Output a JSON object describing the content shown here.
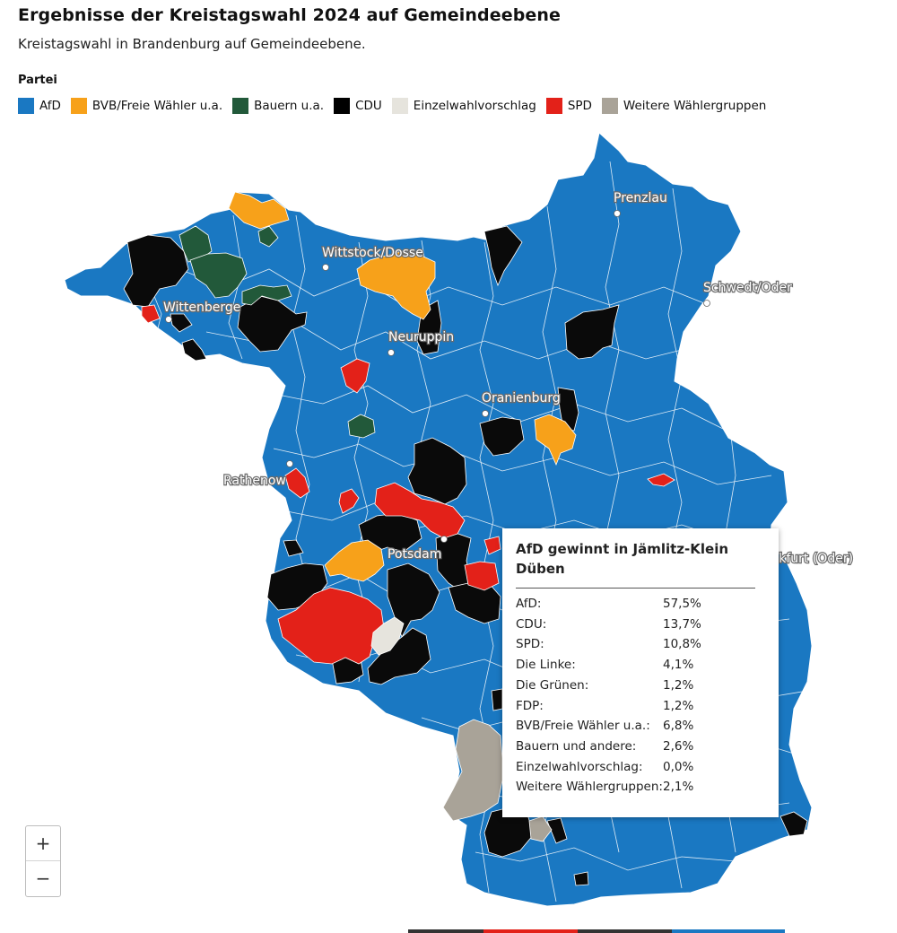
{
  "title": "Ergebnisse der Kreistagswahl 2024 auf Gemeindeebene",
  "subtitle": "Kreistagswahl in Brandenburg auf Gemeindeebene.",
  "legend": {
    "title": "Partei",
    "items": [
      {
        "label": "AfD",
        "color": "#1a78c2"
      },
      {
        "label": "BVB/Freie Wähler u.a.",
        "color": "#f7a11a"
      },
      {
        "label": "Bauern u.a.",
        "color": "#22593a"
      },
      {
        "label": "CDU",
        "color": "#000000"
      },
      {
        "label": "Einzelwahlvorschlag",
        "color": "#e6e4dd"
      },
      {
        "label": "SPD",
        "color": "#e32119"
      },
      {
        "label": "Weitere Wählergruppen",
        "color": "#a9a398"
      }
    ]
  },
  "cities": [
    "Prenzlau",
    "Wittstock/Dosse",
    "Schwedt/Oder",
    "Wittenberge",
    "Neuruppin",
    "Oranienburg",
    "Rathenow",
    "Potsdam",
    "Frankfurt (Oder)"
  ],
  "tooltip": {
    "title": "AfD gewinnt in Jämlitz-Klein Düben",
    "rows": [
      {
        "party": "AfD:",
        "value": "57,5%"
      },
      {
        "party": "CDU:",
        "value": "13,7%"
      },
      {
        "party": "SPD:",
        "value": "10,8%"
      },
      {
        "party": "Die Linke:",
        "value": "4,1%"
      },
      {
        "party": "Die Grünen:",
        "value": "1,2%"
      },
      {
        "party": "FDP:",
        "value": "1,2%"
      },
      {
        "party": "BVB/Freie Wähler u.a.:",
        "value": "6,8%"
      },
      {
        "party": "Bauern und andere:",
        "value": "2,6%"
      },
      {
        "party": "Einzelwahlvorschlag:",
        "value": "0,0%"
      },
      {
        "party": "Weitere Wählergruppen:",
        "value": "2,1%"
      }
    ]
  },
  "zoom": {
    "in_label": "+",
    "out_label": "−"
  }
}
